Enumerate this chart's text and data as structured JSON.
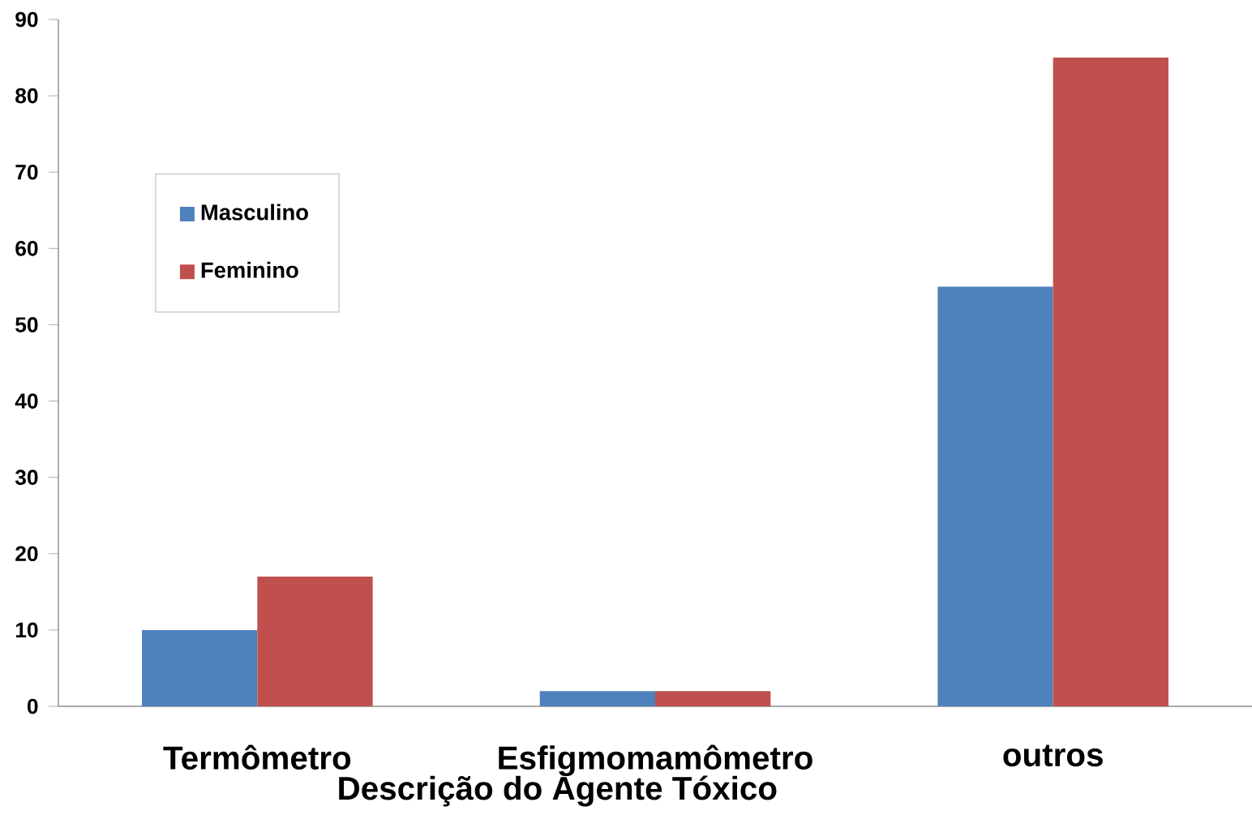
{
  "chart_data": {
    "type": "bar",
    "xlabel": "Descrição do Agente Tóxico",
    "categories": [
      "Termômetro",
      "Esfigmomamômetro",
      "outros"
    ],
    "series": [
      {
        "name": "Masculino",
        "color": "#4f81bd",
        "values": [
          10,
          2,
          55
        ]
      },
      {
        "name": "Feminino",
        "color": "#c0504d",
        "values": [
          17,
          2,
          85
        ]
      }
    ],
    "ylim": [
      0,
      90
    ],
    "yticks": [
      0,
      10,
      20,
      30,
      40,
      50,
      60,
      70,
      80,
      90
    ],
    "legend": "top left"
  }
}
